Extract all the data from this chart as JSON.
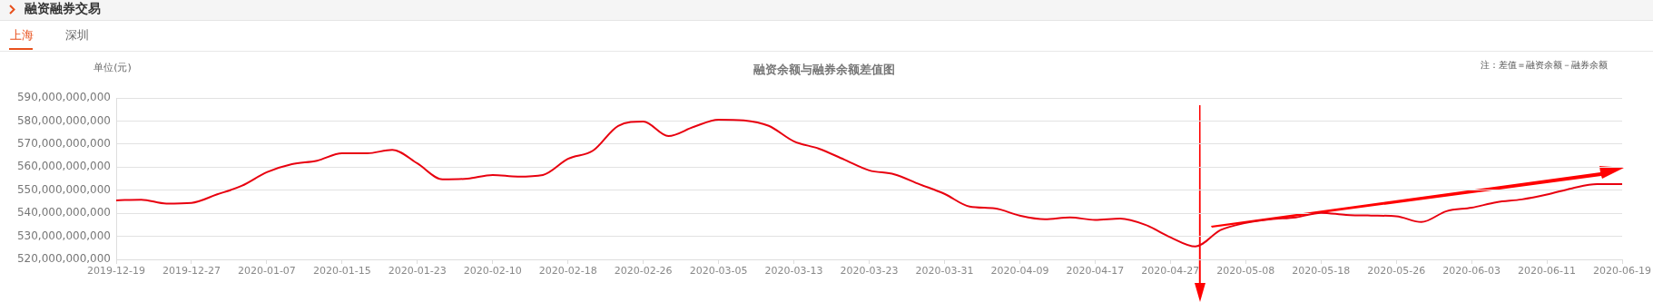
{
  "chart_data": {
    "type": "line",
    "title": "融资余额与融券余额差值图",
    "ylabel": "单位(元)",
    "annotations": [
      "融资融券交易",
      "上海",
      "深圳",
      "注：差值＝融资余额－融券余额"
    ],
    "categories": [
      "2019-12-19",
      null,
      null,
      "2019-12-27",
      null,
      null,
      "2020-01-07",
      null,
      null,
      "2020-01-15",
      null,
      null,
      "2020-01-23",
      null,
      null,
      "2020-02-10",
      null,
      null,
      "2020-02-18",
      null,
      null,
      "2020-02-26",
      null,
      null,
      "2020-03-05",
      null,
      null,
      "2020-03-13",
      null,
      null,
      "2020-03-23",
      null,
      null,
      "2020-03-31",
      null,
      null,
      "2020-04-09",
      null,
      null,
      "2020-04-17",
      null,
      null,
      "2020-04-27",
      null,
      null,
      "2020-05-08",
      null,
      null,
      "2020-05-18",
      null,
      null,
      "2020-05-26",
      null,
      null,
      "2020-06-03",
      null,
      null,
      "2020-06-11",
      null,
      null,
      "2020-06-19"
    ],
    "series": [
      {
        "color": "#e8000f",
        "values": [
          545600000000,
          545900000000,
          544200000000,
          544500000000,
          548100000000,
          551900000000,
          557800000000,
          561300000000,
          562800000000,
          566000000000,
          566000000000,
          567500000000,
          561600000000,
          554700000000,
          555000000000,
          556600000000,
          555900000000,
          556600000000,
          563600000000,
          567200000000,
          577900000000,
          579800000000,
          573500000000,
          577400000000,
          580600000000,
          580300000000,
          577900000000,
          571200000000,
          568000000000,
          563300000000,
          558600000000,
          556900000000,
          552600000000,
          548400000000,
          542900000000,
          542100000000,
          539000000000,
          537400000000,
          538200000000,
          537100000000,
          537700000000,
          535000000000,
          529600000000,
          525600000000,
          532700000000,
          535800000000,
          537400000000,
          538200000000,
          540200000000,
          539300000000,
          539000000000,
          538700000000,
          536200000000,
          540900000000,
          542400000000,
          544800000000,
          546000000000,
          548100000000,
          550800000000,
          552600000000,
          552600000000
        ]
      }
    ],
    "ylim": [
      520000000000,
      590000000000
    ],
    "yticks": [
      {
        "value": 520000000000,
        "label": "520,000,000,000"
      },
      {
        "value": 530000000000,
        "label": "530,000,000,000"
      },
      {
        "value": 540000000000,
        "label": "540,000,000,000"
      },
      {
        "value": 550000000000,
        "label": "550,000,000,000"
      },
      {
        "value": 560000000000,
        "label": "560,000,000,000"
      },
      {
        "value": 570000000000,
        "label": "570,000,000,000"
      },
      {
        "value": 580000000000,
        "label": "580,000,000,000"
      },
      {
        "value": 590000000000,
        "label": "590,000,000,000"
      }
    ],
    "grid": "y",
    "legend": false,
    "marker": "none",
    "line_style": "solid"
  }
}
